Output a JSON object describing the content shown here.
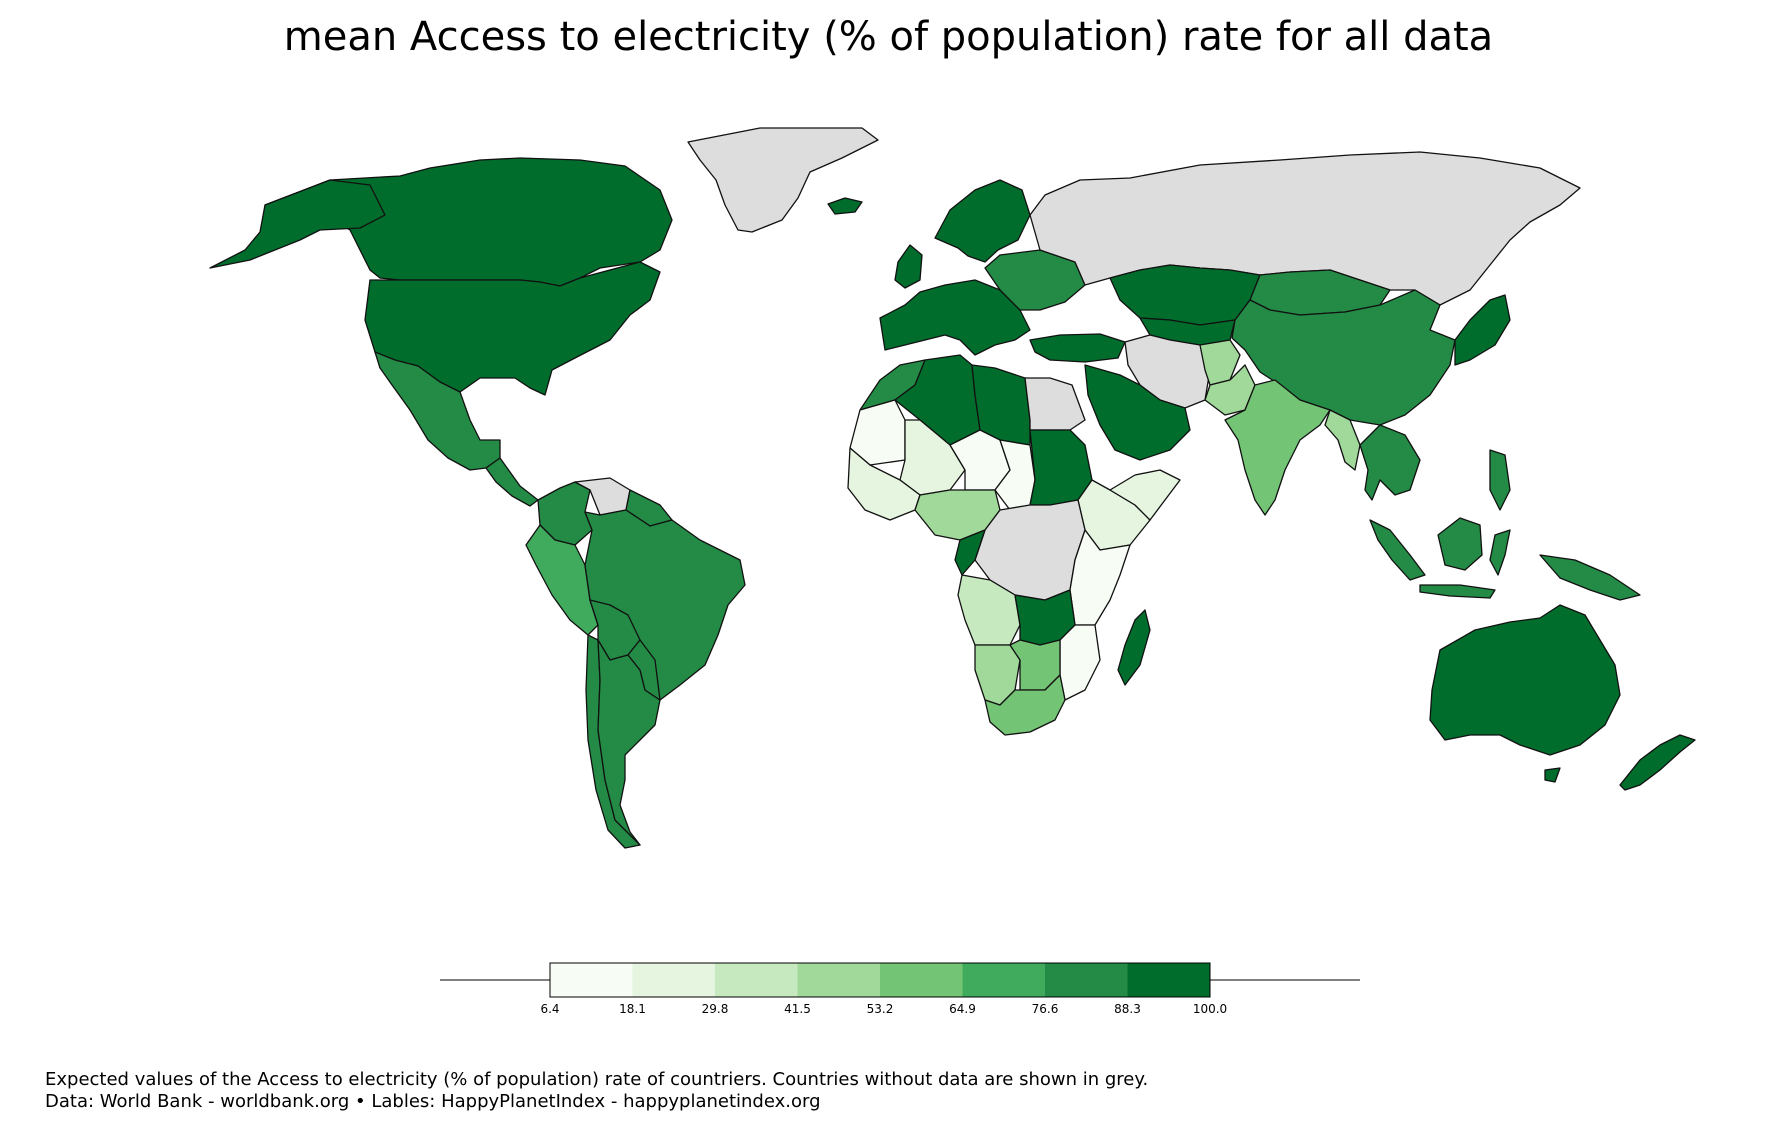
{
  "title": "mean Access to electricity (% of population) rate for all data",
  "colors": {
    "no_data": "#dddddd",
    "scale": [
      "#f7fcf5",
      "#e5f5e0",
      "#c7e9c0",
      "#a1d99b",
      "#74c476",
      "#41ab5d",
      "#238b45",
      "#006d2c"
    ]
  },
  "colorbar": {
    "ticks": [
      "6.4",
      "18.1",
      "29.8",
      "41.5",
      "53.2",
      "64.9",
      "76.6",
      "88.3",
      "100.0"
    ]
  },
  "footer": {
    "line1": "Expected values of the Access to electricity (% of population) rate of countriers. Countries without data are shown in grey.",
    "line2": "Data: World Bank - worldbank.org • Lables: HappyPlanetIndex - happyplanetindex.org"
  },
  "regions": [
    {
      "name": "Greenland",
      "bin": "none"
    },
    {
      "name": "Russia",
      "bin": "none"
    },
    {
      "name": "Canada",
      "bin": 7
    },
    {
      "name": "United States",
      "bin": 7
    },
    {
      "name": "Mexico",
      "bin": 6
    },
    {
      "name": "Brazil",
      "bin": 6
    },
    {
      "name": "Peru",
      "bin": 5
    },
    {
      "name": "Bolivia",
      "bin": 6
    },
    {
      "name": "Argentina",
      "bin": 6
    },
    {
      "name": "Chile",
      "bin": 6
    },
    {
      "name": "Colombia",
      "bin": 6
    },
    {
      "name": "Venezuela",
      "bin": "none"
    },
    {
      "name": "Western Europe",
      "bin": 7
    },
    {
      "name": "Scandinavia",
      "bin": 7
    },
    {
      "name": "Eastern Europe",
      "bin": 6
    },
    {
      "name": "Turkey",
      "bin": 7
    },
    {
      "name": "Algeria",
      "bin": 7
    },
    {
      "name": "Libya",
      "bin": 7
    },
    {
      "name": "Morocco",
      "bin": 6
    },
    {
      "name": "Egypt",
      "bin": "none"
    },
    {
      "name": "Mauritania",
      "bin": 0
    },
    {
      "name": "Mali",
      "bin": 1
    },
    {
      "name": "Niger",
      "bin": 0
    },
    {
      "name": "Chad",
      "bin": 0
    },
    {
      "name": "Sudan",
      "bin": 7
    },
    {
      "name": "Nigeria",
      "bin": 3
    },
    {
      "name": "Ethiopia",
      "bin": 1
    },
    {
      "name": "DR Congo",
      "bin": "none"
    },
    {
      "name": "Angola",
      "bin": 2
    },
    {
      "name": "Zambia",
      "bin": 7
    },
    {
      "name": "Tanzania",
      "bin": 0
    },
    {
      "name": "Namibia",
      "bin": 3
    },
    {
      "name": "Botswana",
      "bin": 4
    },
    {
      "name": "South Africa",
      "bin": 4
    },
    {
      "name": "Madagascar",
      "bin": 7
    },
    {
      "name": "Saudi Arabia",
      "bin": 7
    },
    {
      "name": "Iran",
      "bin": "none"
    },
    {
      "name": "Afghanistan",
      "bin": 3
    },
    {
      "name": "Kazakhstan",
      "bin": 7
    },
    {
      "name": "Mongolia",
      "bin": 6
    },
    {
      "name": "China",
      "bin": 6
    },
    {
      "name": "India",
      "bin": 4
    },
    {
      "name": "Myanmar",
      "bin": 3
    },
    {
      "name": "Thailand",
      "bin": 6
    },
    {
      "name": "Japan",
      "bin": 7
    },
    {
      "name": "Indonesia",
      "bin": 6
    },
    {
      "name": "Papua New Guinea",
      "bin": 6
    },
    {
      "name": "Australia",
      "bin": 7
    },
    {
      "name": "New Zealand",
      "bin": 7
    }
  ]
}
